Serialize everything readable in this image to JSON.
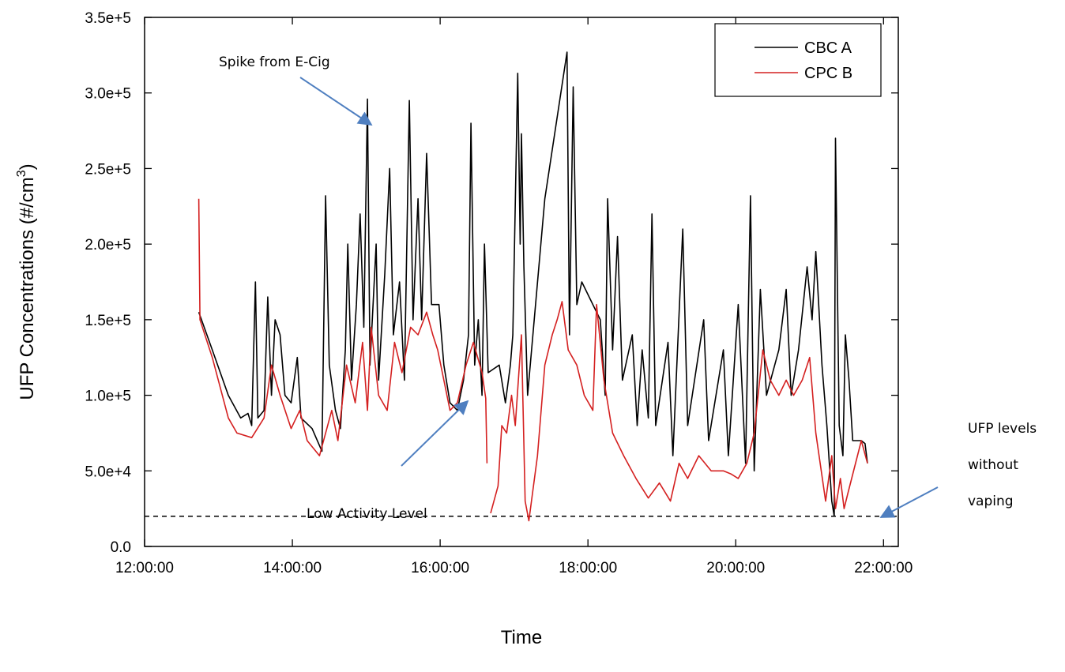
{
  "chart_data": {
    "type": "line",
    "x_label": "Time",
    "y_label": {
      "text": "UFP Concentrations (#/cm",
      "sup": "3",
      "end": ")"
    },
    "xlim": [
      "12:00:00",
      "22:12:00"
    ],
    "xticks": [
      "12:00:00",
      "14:00:00",
      "16:00:00",
      "18:00:00",
      "20:00:00",
      "22:00:00"
    ],
    "ylim": [
      0,
      350000
    ],
    "yticks": [
      {
        "value": 0,
        "label": "0.0"
      },
      {
        "value": 50000,
        "label": "5.0e+4"
      },
      {
        "value": 100000,
        "label": "1.0e+5"
      },
      {
        "value": 150000,
        "label": "1.5e+5"
      },
      {
        "value": 200000,
        "label": "2.0e+5"
      },
      {
        "value": 250000,
        "label": "2.5e+5"
      },
      {
        "value": 300000,
        "label": "3.0e+5"
      },
      {
        "value": 350000,
        "label": "3.5e+5"
      }
    ],
    "reference_line": 20000,
    "legend_position": "upper right",
    "annotations": {
      "spike": "Spike from E-Cig",
      "low": "Low Activity Level",
      "baseline": [
        "UFP levels",
        "without",
        "vaping"
      ]
    },
    "series": [
      {
        "name": "CBC A",
        "color": "#000000",
        "x": [
          "12:44:00",
          "12:55:00",
          "13:08:00",
          "13:18:00",
          "13:24:00",
          "13:27:00",
          "13:30:00",
          "13:32:00",
          "13:37:00",
          "13:40:00",
          "13:43:00",
          "13:46:00",
          "13:50:00",
          "13:54:00",
          "13:59:00",
          "14:04:00",
          "14:07:00",
          "14:16:00",
          "14:24:00",
          "14:27:00",
          "14:30:00",
          "14:35:00",
          "14:39:00",
          "14:43:00",
          "14:45:00",
          "14:48:00",
          "14:52:00",
          "14:55:00",
          "14:58:00",
          "15:01:00",
          "15:03:00",
          "15:08:00",
          "15:10:00",
          "15:15:00",
          "15:19:00",
          "15:22:00",
          "15:27:00",
          "15:31:00",
          "15:35:00",
          "15:38:00",
          "15:42:00",
          "15:45:00",
          "15:49:00",
          "15:53:00",
          "15:59:00",
          "16:03:00",
          "16:08:00",
          "16:14:00",
          "16:19:00",
          "16:23:00",
          "16:25:00",
          "16:28:00",
          "16:31:00",
          "16:34:00",
          "16:36:00",
          "16:39:00",
          "16:48:00",
          "16:53:00",
          "16:57:00",
          "16:59:00",
          "17:03:00",
          "17:05:00",
          "17:06:00",
          "17:08:00",
          "17:11:00",
          "17:25:00",
          "17:43:00",
          "17:45:00",
          "17:48:00",
          "17:51:00",
          "17:55:00",
          "18:04:00",
          "18:10:00",
          "18:14:00",
          "18:16:00",
          "18:20:00",
          "18:24:00",
          "18:28:00",
          "18:36:00",
          "18:40:00",
          "18:44:00",
          "18:49:00",
          "18:52:00",
          "18:55:00",
          "19:05:00",
          "19:09:00",
          "19:17:00",
          "19:21:00",
          "19:34:00",
          "19:38:00",
          "19:50:00",
          "19:54:00",
          "20:02:00",
          "20:08:00",
          "20:12:00",
          "20:15:00",
          "20:20:00",
          "20:25:00",
          "20:35:00",
          "20:41:00",
          "20:45:00",
          "20:51:00",
          "20:58:00",
          "21:02:00",
          "21:05:00",
          "21:10:00",
          "21:14:00",
          "21:18:00",
          "21:20:00",
          "21:21:00",
          "21:24:00",
          "21:27:00",
          "21:29:00",
          "21:32:00",
          "21:35:00",
          "21:42:00",
          "21:45:00",
          "21:47:00"
        ],
        "values": [
          155000,
          130000,
          100000,
          85000,
          88000,
          80000,
          175000,
          85000,
          90000,
          165000,
          100000,
          150000,
          140000,
          100000,
          95000,
          125000,
          85000,
          78000,
          63000,
          232000,
          120000,
          90000,
          78000,
          130000,
          200000,
          110000,
          160000,
          220000,
          145000,
          296000,
          120000,
          200000,
          110000,
          180000,
          250000,
          140000,
          175000,
          110000,
          295000,
          150000,
          230000,
          150000,
          260000,
          160000,
          160000,
          120000,
          95000,
          90000,
          110000,
          140000,
          280000,
          120000,
          150000,
          100000,
          200000,
          115000,
          120000,
          95000,
          120000,
          140000,
          313000,
          200000,
          273000,
          185000,
          100000,
          230000,
          327000,
          140000,
          304000,
          160000,
          175000,
          160000,
          150000,
          100000,
          230000,
          130000,
          205000,
          110000,
          140000,
          80000,
          130000,
          85000,
          220000,
          80000,
          135000,
          60000,
          210000,
          80000,
          150000,
          70000,
          130000,
          60000,
          160000,
          55000,
          232000,
          50000,
          170000,
          100000,
          130000,
          170000,
          100000,
          130000,
          185000,
          150000,
          195000,
          120000,
          80000,
          30000,
          20000,
          270000,
          80000,
          60000,
          140000,
          110000,
          70000,
          70000,
          68000,
          55000
        ]
      },
      {
        "name": "CPC B",
        "color": "#d42020",
        "x": [
          "12:44:00",
          "12:45:00",
          "12:55:00",
          "13:08:00",
          "13:15:00",
          "13:27:00",
          "13:37:00",
          "13:43:00",
          "13:50:00",
          "13:59:00",
          "14:06:00",
          "14:12:00",
          "14:22:00",
          "14:32:00",
          "14:37:00",
          "14:44:00",
          "14:51:00",
          "14:57:00",
          "15:01:00",
          "15:04:00",
          "15:10:00",
          "15:17:00",
          "15:23:00",
          "15:29:00",
          "15:36:00",
          "15:42:00",
          "15:49:00",
          "15:54:00",
          "15:58:00",
          "16:08:00",
          "16:14:00",
          "16:21:00",
          "16:27:00",
          "16:34:00",
          "16:37:00",
          "16:38:00",
          "16:40:00",
          "16:41:00",
          "16:47:00",
          "16:50:00",
          "16:54:00",
          "16:58:00",
          "17:01:00",
          "17:06:00",
          "17:09:00",
          "17:12:00",
          "17:19:00",
          "17:25:00",
          "17:31:00",
          "17:35:00",
          "17:39:00",
          "17:44:00",
          "17:51:00",
          "17:57:00",
          "18:04:00",
          "18:07:00",
          "18:13:00",
          "18:20:00",
          "18:29:00",
          "18:39:00",
          "18:49:00",
          "18:58:00",
          "19:07:00",
          "19:14:00",
          "19:21:00",
          "19:30:00",
          "19:40:00",
          "19:50:00",
          "19:56:00",
          "20:02:00",
          "20:09:00",
          "20:15:00",
          "20:22:00",
          "20:28:00",
          "20:35:00",
          "20:41:00",
          "20:47:00",
          "20:54:00",
          "21:00:00",
          "21:05:00",
          "21:13:00",
          "21:18:00",
          "21:21:00",
          "21:25:00",
          "21:28:00",
          "21:31:00",
          "21:42:00",
          "21:47:00"
        ],
        "values": [
          230000,
          150000,
          125000,
          85000,
          75000,
          72000,
          85000,
          120000,
          100000,
          78000,
          90000,
          70000,
          60000,
          90000,
          70000,
          120000,
          95000,
          135000,
          90000,
          145000,
          100000,
          90000,
          135000,
          115000,
          145000,
          140000,
          155000,
          140000,
          130000,
          90000,
          95000,
          120000,
          135000,
          115000,
          98000,
          55000,
          null,
          22000,
          40000,
          80000,
          75000,
          100000,
          80000,
          140000,
          30000,
          17000,
          60000,
          120000,
          140000,
          150000,
          162000,
          130000,
          120000,
          100000,
          90000,
          160000,
          110000,
          75000,
          60000,
          45000,
          32000,
          42000,
          30000,
          55000,
          45000,
          60000,
          50000,
          50000,
          48000,
          45000,
          55000,
          75000,
          130000,
          110000,
          100000,
          110000,
          100000,
          110000,
          125000,
          75000,
          30000,
          60000,
          25000,
          45000,
          25000,
          35000,
          70000,
          55000
        ]
      }
    ]
  }
}
